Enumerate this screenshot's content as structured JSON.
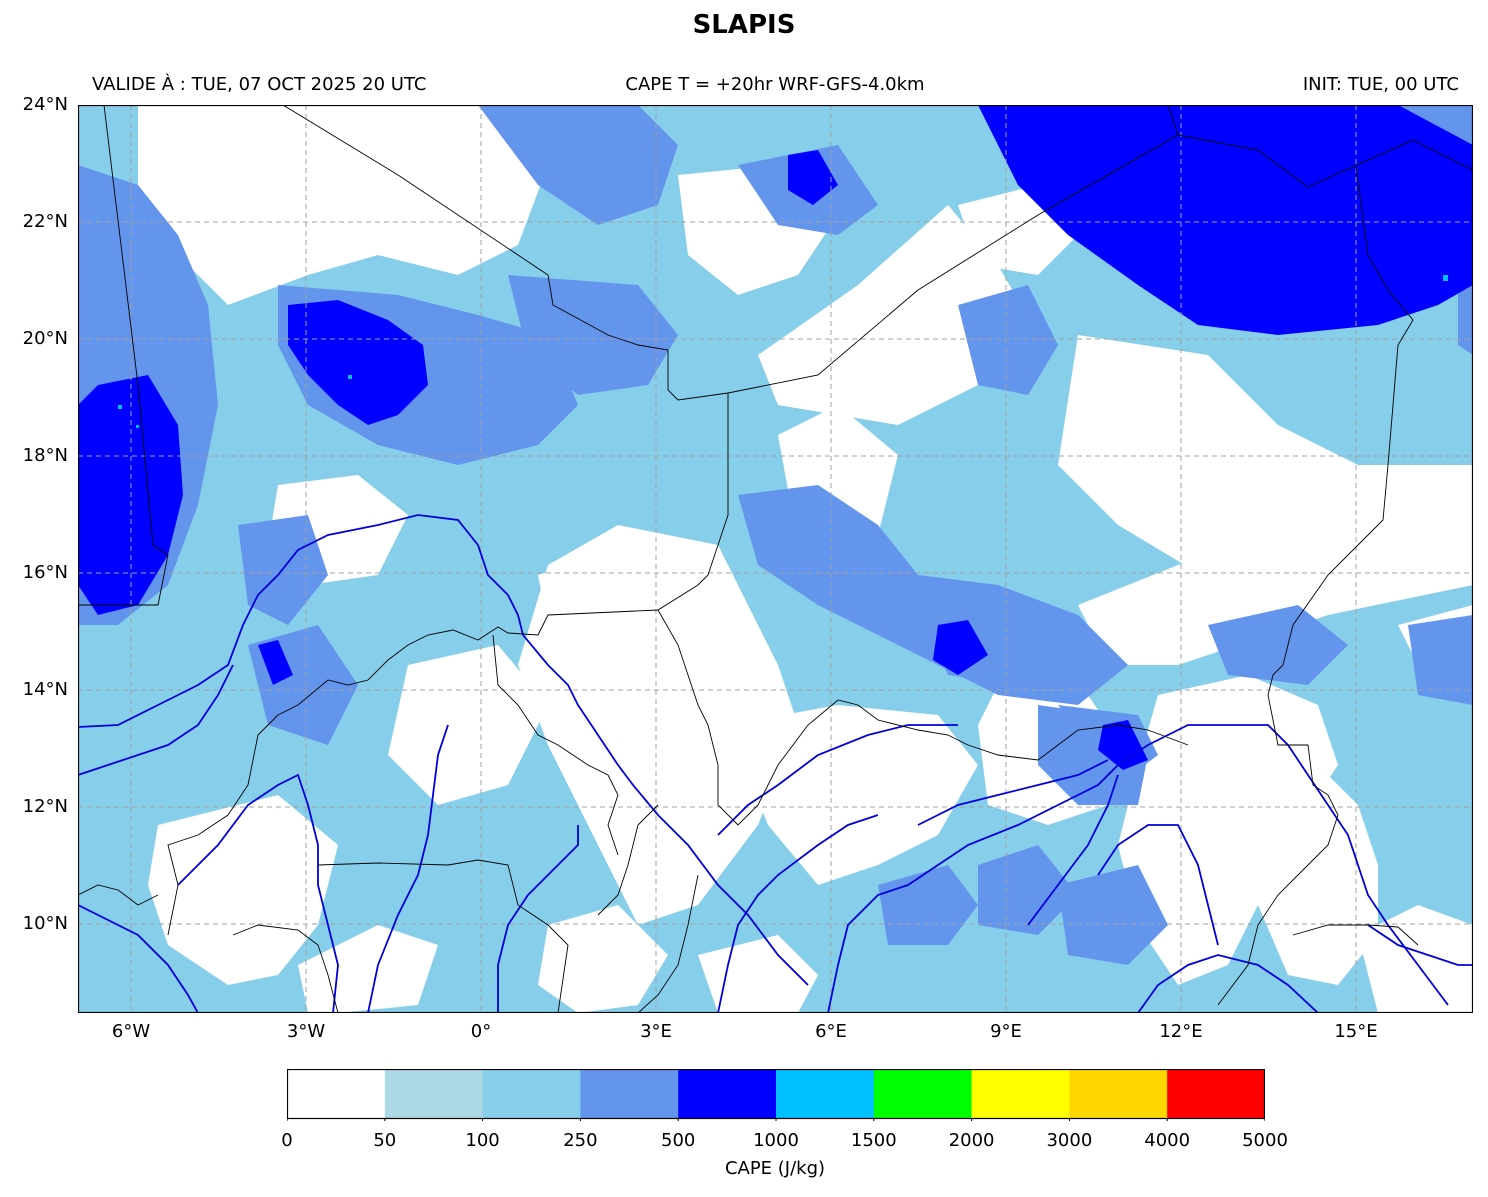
{
  "title": "SLAPIS",
  "header": {
    "valid": "VALIDE À : TUE, 07 OCT 2025 20 UTC",
    "run": "CAPE T = +20hr WRF-GFS-4.0km",
    "init": "INIT: TUE, 00 UTC"
  },
  "map": {
    "lat_range": [
      8.5,
      24
    ],
    "lon_range": [
      -7,
      17
    ],
    "lat_labels": [
      "24°N",
      "22°N",
      "20°N",
      "18°N",
      "16°N",
      "14°N",
      "12°N",
      "10°N"
    ],
    "lon_labels": [
      "6°W",
      "3°W",
      "0°",
      "3°E",
      "6°E",
      "9°E",
      "12°E",
      "15°E"
    ],
    "gridlines": true
  },
  "colorbar": {
    "label": "CAPE (J/kg)",
    "ticks": [
      "0",
      "50",
      "100",
      "250",
      "500",
      "1000",
      "1500",
      "2000",
      "3000",
      "4000",
      "5000"
    ],
    "colors": [
      "#ffffff",
      "#add8e6",
      "#87ceeb",
      "#6495ed",
      "#0000ff",
      "#00bfff",
      "#00ff00",
      "#ffff00",
      "#ffd700",
      "#ff0000"
    ]
  }
}
